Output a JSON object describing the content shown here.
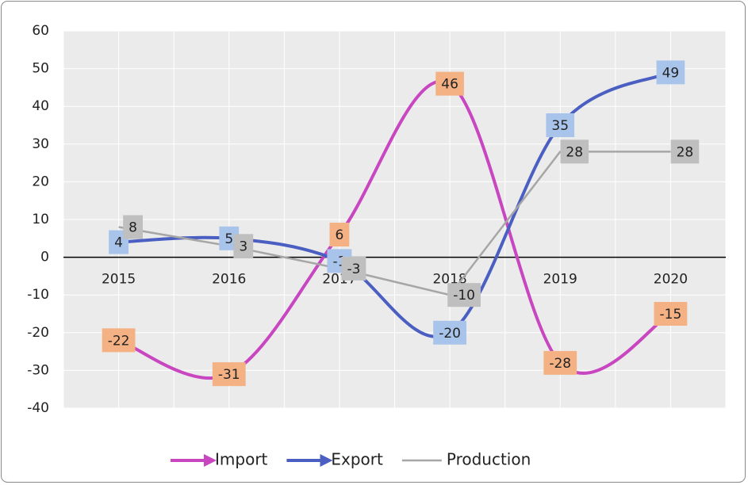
{
  "chart_data": {
    "type": "line",
    "categories": [
      "2015",
      "2016",
      "2017",
      "2018",
      "2019",
      "2020"
    ],
    "series": [
      {
        "name": "Import",
        "color": "#c846c0",
        "label_color": "#f4b183",
        "smooth": true,
        "arrow": true,
        "values": [
          -22,
          -31,
          6,
          46,
          -28,
          -15
        ]
      },
      {
        "name": "Export",
        "color": "#4a5fc1",
        "label_color": "#a9c4eb",
        "smooth": true,
        "arrow": true,
        "values": [
          4,
          5,
          -1,
          -20,
          35,
          49
        ]
      },
      {
        "name": "Production",
        "color": "#a6a6a6",
        "label_color": "#bfbfbf",
        "smooth": false,
        "arrow": false,
        "values": [
          8,
          3,
          -3,
          -10,
          28,
          28
        ]
      }
    ],
    "ylim": [
      -40,
      60
    ],
    "yticks": [
      -40,
      -30,
      -20,
      -10,
      0,
      10,
      20,
      30,
      40,
      50,
      60
    ],
    "grid": true,
    "legend": "bottom"
  }
}
